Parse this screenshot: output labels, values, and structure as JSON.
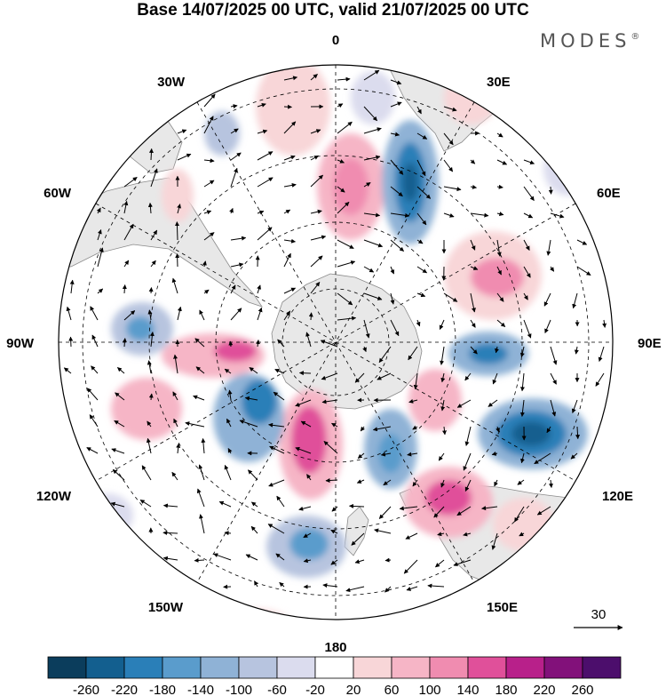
{
  "title": "Base 14/07/2025 00 UTC, valid 21/07/2025 00 UTC",
  "brand": "MODES",
  "brand_mark": "®",
  "longitude_labels": {
    "top": "0",
    "top_right": "30E",
    "right_upper": "60E",
    "right": "90E",
    "right_lower": "120E",
    "bottom_right": "150E",
    "bottom": "180",
    "bottom_left": "150W",
    "left_lower": "120W",
    "left": "90W",
    "left_upper": "60W",
    "top_left": "30W"
  },
  "reference_vector": "30",
  "colorbar": {
    "ticks": [
      "-260",
      "-220",
      "-180",
      "-140",
      "-100",
      "-60",
      "-20",
      "20",
      "60",
      "100",
      "140",
      "180",
      "220",
      "260"
    ],
    "colors": [
      "#0b3d5c",
      "#135f8f",
      "#2a7fb8",
      "#5a9ccc",
      "#8fb2d6",
      "#b7c4df",
      "#dbdcee",
      "#ffffff",
      "#f8d6d8",
      "#f6b5c6",
      "#f08cb0",
      "#e0509a",
      "#b8208a",
      "#82117a",
      "#4c0e6c"
    ]
  },
  "map": {
    "projection": "south polar stereographic",
    "fill_colors": {
      "land": "#e8e8e8",
      "coast": "#8a8a8a",
      "grid": "#000000",
      "arrows": "#000000"
    },
    "field": "height anomaly with wind vectors"
  }
}
